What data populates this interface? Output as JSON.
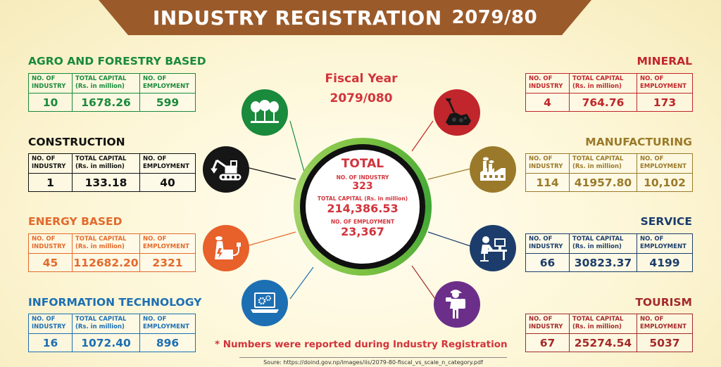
{
  "title": "INDUSTRY REGISTRATION",
  "title_year": "2079/80",
  "fiscal_year": {
    "label": "Fiscal Year",
    "value": "2079/080"
  },
  "column_headers": {
    "industry": "NO. OF INDUSTRY",
    "capital": "TOTAL CAPITAL (Rs. in million)",
    "employment": "NO. OF EMPLOYMENT"
  },
  "categories": {
    "agro": {
      "name": "AGRO AND FORESTRY BASED",
      "industry": "10",
      "capital": "1678.26",
      "employment": "599",
      "color": "#1a8a3c",
      "icon": "trees-icon"
    },
    "construction": {
      "name": "CONSTRUCTION",
      "industry": "1",
      "capital": "133.18",
      "employment": "40",
      "color": "#111111",
      "icon": "excavator-icon"
    },
    "energy": {
      "name": "ENERGY BASED",
      "industry": "45",
      "capital": "112682.20",
      "employment": "2321",
      "color": "#e36a2c",
      "icon": "power-plant-icon"
    },
    "it": {
      "name": "INFORMATION TECHNOLOGY",
      "industry": "16",
      "capital": "1072.40",
      "employment": "896",
      "color": "#1d6fb3",
      "icon": "laptop-gears-icon"
    },
    "mineral": {
      "name": "MINERAL",
      "industry": "4",
      "capital": "764.76",
      "employment": "173",
      "color": "#c0262b",
      "icon": "shovel-coal-icon"
    },
    "manufacturing": {
      "name": "MANUFACTURING",
      "industry": "114",
      "capital": "41957.80",
      "employment": "10,102",
      "color": "#9a7a2a",
      "icon": "factory-icon"
    },
    "service": {
      "name": "SERVICE",
      "industry": "66",
      "capital": "30823.37",
      "employment": "4199",
      "color": "#1c3d6b",
      "icon": "office-worker-icon"
    },
    "tourism": {
      "name": "TOURISM",
      "industry": "67",
      "capital": "25274.54",
      "employment": "5037",
      "color": "#a42a2a",
      "icon": "tourist-icon"
    }
  },
  "total": {
    "label": "TOTAL",
    "industry_label": "NO. OF INDUSTRY",
    "industry": "323",
    "capital_label": "TOTAL CAPITAL (Rs. in million)",
    "capital": "214,386.53",
    "employment_label": "NO. OF EMPLOYMENT",
    "employment": "23,367"
  },
  "footnote": "* Numbers were reported during Industry Registration",
  "source": "Soure: https://doind.gov.np/images/iis/2079-80-fiscal_vs_scale_n_category.pdf"
}
